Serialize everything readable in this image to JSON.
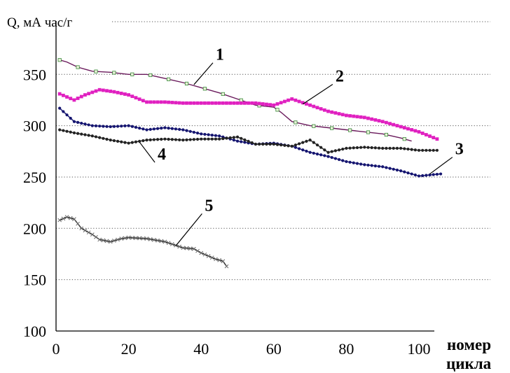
{
  "chart_data": {
    "type": "line",
    "ylabel": "Q, мА час/г",
    "xlabel_line1": "номер",
    "xlabel_line2": "цикла",
    "xlim": [
      0,
      110
    ],
    "ylim": [
      100,
      370
    ],
    "x_ticks": [
      "0",
      "20",
      "40",
      "60",
      "80",
      "100"
    ],
    "y_ticks": [
      "100",
      "150",
      "200",
      "250",
      "300",
      "350"
    ],
    "grid": "horizontal-dotted",
    "series": [
      {
        "name": "1",
        "color": "#6a1a5c",
        "marker": "square-light",
        "x": [
          1,
          3,
          6,
          10,
          15,
          20,
          25,
          30,
          35,
          40,
          45,
          50,
          55,
          60,
          62,
          65,
          70,
          75,
          80,
          85,
          90,
          95,
          98
        ],
        "y": [
          364,
          362,
          357,
          353,
          352,
          350,
          350,
          346,
          342,
          337,
          332,
          326,
          320,
          318,
          313,
          304,
          300,
          298,
          296,
          294,
          292,
          288,
          285
        ]
      },
      {
        "name": "2",
        "color": "#e020c0",
        "marker": "square",
        "x": [
          1,
          5,
          8,
          12,
          16,
          20,
          25,
          30,
          35,
          40,
          45,
          50,
          55,
          60,
          65,
          70,
          75,
          80,
          85,
          90,
          95,
          100,
          105
        ],
        "y": [
          331,
          325,
          330,
          335,
          333,
          330,
          323,
          323,
          322,
          322,
          322,
          322,
          322,
          320,
          326,
          320,
          314,
          310,
          308,
          304,
          299,
          294,
          287
        ]
      },
      {
        "name": "3",
        "color": "#151570",
        "marker": "dot",
        "x": [
          1,
          5,
          10,
          15,
          20,
          25,
          30,
          35,
          40,
          45,
          50,
          55,
          60,
          65,
          70,
          75,
          80,
          85,
          90,
          95,
          100,
          103,
          106
        ],
        "y": [
          317,
          304,
          300,
          299,
          300,
          296,
          298,
          296,
          292,
          290,
          285,
          282,
          283,
          280,
          274,
          270,
          265,
          262,
          260,
          256,
          251,
          252,
          253
        ]
      },
      {
        "name": "4",
        "color": "#222222",
        "marker": "dot",
        "x": [
          1,
          5,
          10,
          15,
          20,
          25,
          30,
          35,
          40,
          45,
          50,
          55,
          60,
          65,
          70,
          75,
          80,
          85,
          90,
          95,
          100,
          105
        ],
        "y": [
          296,
          293,
          290,
          286,
          283,
          286,
          287,
          286,
          287,
          287,
          289,
          282,
          282,
          280,
          286,
          274,
          278,
          279,
          278,
          278,
          276,
          276
        ]
      },
      {
        "name": "5",
        "color": "#222222",
        "marker": "x",
        "x": [
          1,
          3,
          5,
          7,
          10,
          12,
          15,
          18,
          20,
          25,
          30,
          35,
          38,
          40,
          42,
          44,
          46,
          47
        ],
        "y": [
          208,
          211,
          209,
          200,
          194,
          189,
          187,
          190,
          191,
          190,
          187,
          181,
          180,
          176,
          173,
          170,
          168,
          163
        ]
      }
    ],
    "curve_labels": [
      {
        "text": "1",
        "series": "1",
        "point_x": 38,
        "point_y": 340,
        "label_x": 44,
        "label_y": 364
      },
      {
        "text": "2",
        "series": "2",
        "point_x": 68,
        "point_y": 321,
        "label_x": 77,
        "label_y": 343
      },
      {
        "text": "3",
        "series": "3",
        "point_x": 103,
        "point_y": 253,
        "label_x": 110,
        "label_y": 272
      },
      {
        "text": "4",
        "series": "4",
        "point_x": 23,
        "point_y": 284,
        "label_x": 28,
        "label_y": 267
      },
      {
        "text": "5",
        "series": "5",
        "point_x": 33,
        "point_y": 183,
        "label_x": 41,
        "label_y": 217
      }
    ]
  }
}
